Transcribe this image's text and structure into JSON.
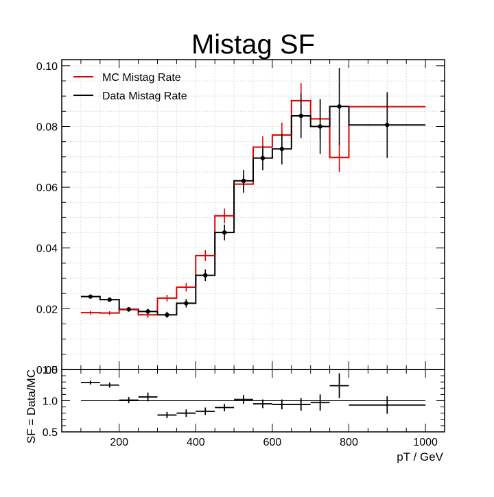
{
  "chart_data": [
    {
      "type": "histogram",
      "title": "Mistag SF",
      "ylim": [
        0.0,
        0.102
      ],
      "yticks": [
        0.0,
        0.02,
        0.04,
        0.06,
        0.08,
        0.1
      ],
      "ytick_labels": [
        "0.00",
        "0.02",
        "0.04",
        "0.06",
        "0.08",
        "0.10"
      ],
      "grid": true,
      "legend": "top-left",
      "bin_edges": [
        100,
        150,
        200,
        250,
        300,
        350,
        400,
        450,
        500,
        550,
        600,
        650,
        700,
        750,
        800,
        1000
      ],
      "series": [
        {
          "name": "MC Mistag Rate",
          "color": "#e00000",
          "values": [
            0.0187,
            0.0186,
            0.0197,
            0.018,
            0.0235,
            0.0271,
            0.0375,
            0.0506,
            0.061,
            0.0732,
            0.0772,
            0.0885,
            0.0825,
            0.0698,
            0.0865
          ],
          "errors": [
            0.0006,
            0.0006,
            0.0007,
            0.001,
            0.0011,
            0.0014,
            0.0018,
            0.0024,
            0.003,
            0.0036,
            0.0041,
            0.0058,
            0.0065,
            0.0048,
            0.0048
          ]
        },
        {
          "name": "Data Mistag Rate",
          "color": "#000000",
          "values": [
            0.024,
            0.023,
            0.0198,
            0.0191,
            0.018,
            0.0218,
            0.031,
            0.0451,
            0.0621,
            0.0696,
            0.0726,
            0.0835,
            0.08,
            0.0866,
            0.0805
          ],
          "errors": [
            0.0006,
            0.0006,
            0.0007,
            0.0009,
            0.001,
            0.0014,
            0.0019,
            0.0026,
            0.0036,
            0.004,
            0.0051,
            0.0073,
            0.009,
            0.0127,
            0.0108
          ]
        }
      ]
    },
    {
      "type": "scatter",
      "xlabel": "pT / GeV",
      "ylabel": "SF = Data/MC",
      "xlim": [
        50,
        1050
      ],
      "xticks": [
        200,
        400,
        600,
        800,
        1000
      ],
      "ylim": [
        0.5,
        1.5
      ],
      "yticks": [
        0.5,
        1.0,
        1.5
      ],
      "ytick_labels": [
        "0.5",
        "1.0",
        "1.5"
      ],
      "reference_line": 1.0,
      "grid": false,
      "bin_edges": [
        100,
        150,
        200,
        250,
        300,
        350,
        400,
        450,
        500,
        550,
        600,
        650,
        700,
        750,
        800,
        1000
      ],
      "values": [
        1.29,
        1.25,
        1.01,
        1.06,
        0.77,
        0.8,
        0.83,
        0.89,
        1.02,
        0.95,
        0.94,
        0.94,
        0.97,
        1.24,
        0.93
      ],
      "errors": [
        0.03,
        0.04,
        0.05,
        0.07,
        0.05,
        0.06,
        0.06,
        0.06,
        0.07,
        0.07,
        0.08,
        0.1,
        0.13,
        0.2,
        0.14
      ]
    }
  ]
}
